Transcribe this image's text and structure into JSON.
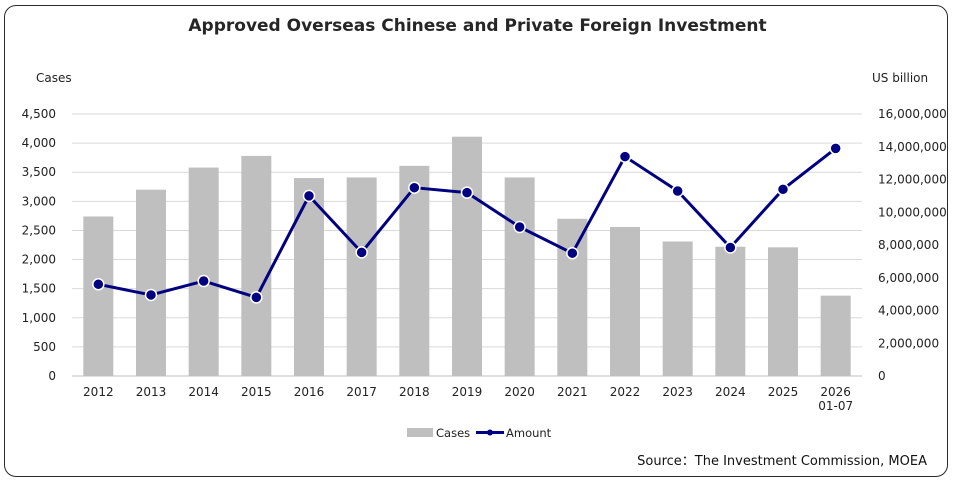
{
  "title": "Approved Overseas Chinese and Private Foreign Investment",
  "source": "Source：The Investment Commission, MOEA",
  "chart_data": {
    "type": "bar",
    "categories": [
      "2012",
      "2013",
      "2014",
      "2015",
      "2016",
      "2017",
      "2018",
      "2019",
      "2020",
      "2021",
      "2022",
      "2023",
      "2024",
      "2025",
      "2026\n01-07"
    ],
    "series": [
      {
        "name": "Cases",
        "type": "bar",
        "axis": "left",
        "color": "#bfbfbf",
        "values": [
          2740,
          3200,
          3580,
          3780,
          3400,
          3410,
          3610,
          4110,
          3410,
          2700,
          2560,
          2310,
          2220,
          2210,
          1380
        ]
      },
      {
        "name": "Amount",
        "type": "line",
        "axis": "right",
        "color": "#000080",
        "values": [
          5600000,
          4950000,
          5800000,
          4800000,
          11000000,
          7550000,
          11500000,
          11200000,
          9100000,
          7500000,
          13400000,
          11300000,
          7850000,
          11400000,
          13900000
        ]
      }
    ],
    "ylabel_left": "Cases",
    "ylabel_right": "US billion",
    "ylim_left": [
      0,
      4500
    ],
    "ylim_right": [
      0,
      16000000
    ],
    "yticks_left": [
      0,
      500,
      1000,
      1500,
      2000,
      2500,
      3000,
      3500,
      4000,
      4500
    ],
    "yticks_right": [
      0,
      2000000,
      4000000,
      6000000,
      8000000,
      10000000,
      12000000,
      14000000,
      16000000
    ],
    "grid": true,
    "legend": "bottom-center"
  }
}
